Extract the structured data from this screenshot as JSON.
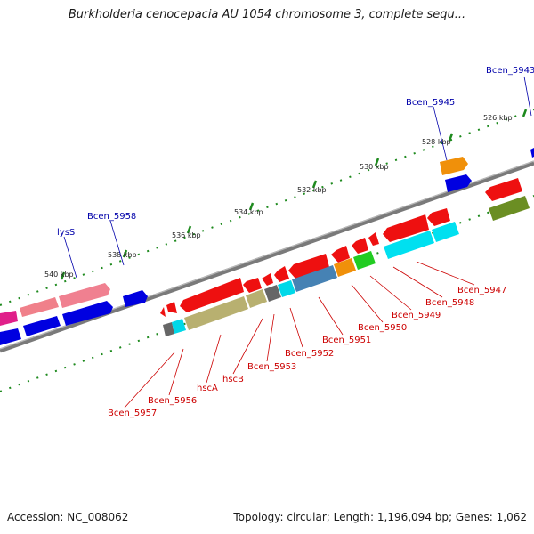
{
  "title": "Burkholderia cenocepacia AU 1054 chromosome 3, complete sequ...",
  "footer": {
    "accession": "Accession: NC_008062",
    "topology": "Topology: circular; Length: 1,196,094 bp; Genes: 1,062"
  },
  "colors": {
    "backbone": "#7a7a7a",
    "ticks": "#1e8a1e",
    "gene_label_top": "#0000aa",
    "gene_label_bottom": "#cc0000"
  },
  "scale_labels": [
    "526 kbp",
    "528 kbp",
    "530 kbp",
    "532 kbp",
    "534 kbp",
    "536 kbp",
    "538 kbp",
    "540 kbp"
  ],
  "gene_labels_top": [
    "Bcen_5943",
    "Bcen_5945",
    "Bcen_5958",
    "lysS"
  ],
  "gene_labels_bottom": [
    "Bcen_5947",
    "Bcen_5948",
    "Bcen_5949",
    "Bcen_5950",
    "Bcen_5951",
    "Bcen_5952",
    "Bcen_5953",
    "hscB",
    "hscA",
    "Bcen_5956",
    "Bcen_5957"
  ]
}
